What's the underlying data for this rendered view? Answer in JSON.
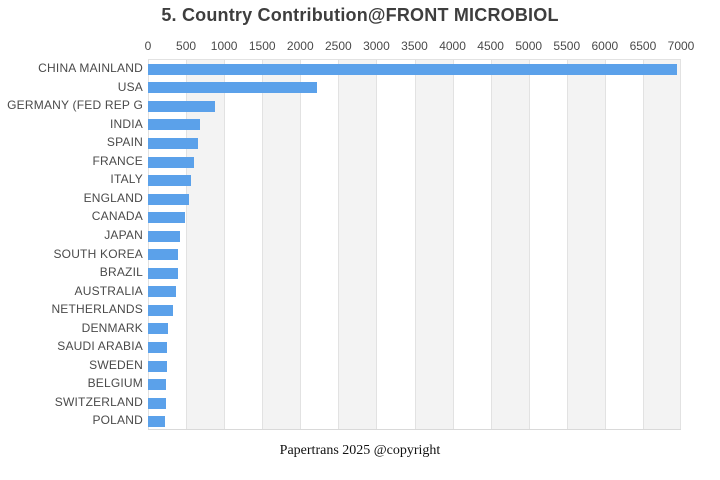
{
  "title": "5. Country Contribution@FRONT MICROBIOL",
  "footer": "Papertrans 2025 @copyright",
  "colors": {
    "bar": "#5BA1EA",
    "band": "#f3f3f3",
    "gridline": "#e2e2e2",
    "title_text": "#3e3e3e",
    "axis_text": "#4a4a4a"
  },
  "chart_data": {
    "type": "bar",
    "orientation": "horizontal",
    "title": "5. Country Contribution@FRONT MICROBIOL",
    "xlabel": "",
    "ylabel": "",
    "xlim": [
      0,
      7000
    ],
    "x_ticks": [
      0,
      500,
      1000,
      1500,
      2000,
      2500,
      3000,
      3500,
      4000,
      4500,
      5000,
      5500,
      6000,
      6500,
      7000
    ],
    "grid": true,
    "band_fill": "alternating columns every 500 units",
    "categories": [
      "CHINA MAINLAND",
      "USA",
      "GERMANY (FED REP G",
      "INDIA",
      "SPAIN",
      "FRANCE",
      "ITALY",
      "ENGLAND",
      "CANADA",
      "JAPAN",
      "SOUTH KOREA",
      "BRAZIL",
      "AUSTRALIA",
      "NETHERLANDS",
      "DENMARK",
      "SAUDI ARABIA",
      "SWEDEN",
      "BELGIUM",
      "SWITZERLAND",
      "POLAND"
    ],
    "values": [
      6950,
      2220,
      875,
      680,
      652,
      610,
      560,
      538,
      487,
      418,
      393,
      390,
      368,
      328,
      263,
      252,
      250,
      242,
      236,
      225
    ]
  }
}
